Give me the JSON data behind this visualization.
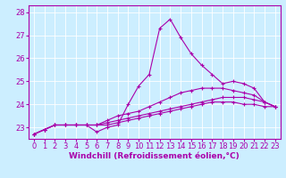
{
  "xlabel": "Windchill (Refroidissement éolien,°C)",
  "ylabel": "",
  "bg_color": "#cceeff",
  "grid_color": "#ffffff",
  "line_color": "#aa00aa",
  "marker": "+",
  "xlim": [
    -0.5,
    23.5
  ],
  "ylim": [
    22.5,
    28.3
  ],
  "xticks": [
    0,
    1,
    2,
    3,
    4,
    5,
    6,
    7,
    8,
    9,
    10,
    11,
    12,
    13,
    14,
    15,
    16,
    17,
    18,
    19,
    20,
    21,
    22,
    23
  ],
  "yticks": [
    23,
    24,
    25,
    26,
    27,
    28
  ],
  "series": [
    [
      22.7,
      22.9,
      23.1,
      23.1,
      23.1,
      23.1,
      22.8,
      23.0,
      23.1,
      24.0,
      24.8,
      25.3,
      27.3,
      27.7,
      26.9,
      26.2,
      25.7,
      25.3,
      24.9,
      25.0,
      24.9,
      24.7,
      24.1,
      23.9
    ],
    [
      22.7,
      22.9,
      23.1,
      23.1,
      23.1,
      23.1,
      23.1,
      23.3,
      23.5,
      23.6,
      23.7,
      23.9,
      24.1,
      24.3,
      24.5,
      24.6,
      24.7,
      24.7,
      24.7,
      24.6,
      24.5,
      24.4,
      24.1,
      23.9
    ],
    [
      22.7,
      22.9,
      23.1,
      23.1,
      23.1,
      23.1,
      23.1,
      23.2,
      23.3,
      23.4,
      23.5,
      23.6,
      23.7,
      23.8,
      23.9,
      24.0,
      24.1,
      24.2,
      24.3,
      24.3,
      24.3,
      24.2,
      24.1,
      23.9
    ],
    [
      22.7,
      22.9,
      23.1,
      23.1,
      23.1,
      23.1,
      23.1,
      23.1,
      23.2,
      23.3,
      23.4,
      23.5,
      23.6,
      23.7,
      23.8,
      23.9,
      24.0,
      24.1,
      24.1,
      24.1,
      24.0,
      24.0,
      23.9,
      23.9
    ]
  ],
  "figsize": [
    3.2,
    2.0
  ],
  "dpi": 100,
  "tick_fontsize": 6,
  "xlabel_fontsize": 6.5,
  "linewidth": 0.8,
  "markersize": 3,
  "markeredgewidth": 0.8
}
